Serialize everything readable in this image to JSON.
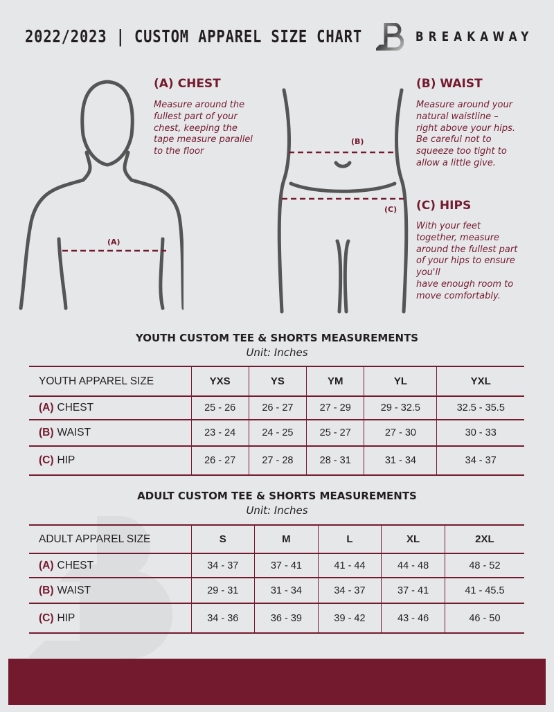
{
  "header": {
    "title": "2022/2023  |  CUSTOM APPAREL SIZE CHART",
    "brand": "BREAKAWAY",
    "watermark": "B"
  },
  "guide": {
    "chest": {
      "heading": "(A) CHEST",
      "text": "Measure around the\nfullest part of your\nchest, keeping the\ntape measure parallel\nto the floor",
      "marker": "(A)"
    },
    "waist": {
      "heading": "(B) WAIST",
      "text": "Measure around your\nnatural waistline –\nright above your hips.\nBe careful not to\nsqueeze too tight to\nallow a little give.",
      "marker": "(B)"
    },
    "hips": {
      "heading": "(C) HIPS",
      "text": "With your feet\ntogether, measure\naround the fullest part\nof your hips to ensure\nyou'll\nhave enough room to\nmove comfortably.",
      "marker": "(C)"
    }
  },
  "youth": {
    "title": "YOUTH CUSTOM TEE & SHORTS MEASUREMENTS",
    "unit": "Unit: Inches",
    "size_label": "YOUTH APPAREL SIZE",
    "sizes": [
      "YXS",
      "YS",
      "YM",
      "YL",
      "YXL"
    ],
    "rows": [
      {
        "letter": "(A)",
        "name": "CHEST",
        "values": [
          "25 - 26",
          "26 - 27",
          "27 - 29",
          "29 - 32.5",
          "32.5 - 35.5"
        ]
      },
      {
        "letter": "(B)",
        "name": "WAIST",
        "values": [
          "23 - 24",
          "24 - 25",
          "25 - 27",
          "27 - 30",
          "30 - 33"
        ]
      },
      {
        "letter": "(C)",
        "name": "HIP",
        "values": [
          "26 - 27",
          "27 - 28",
          "28 - 31",
          "31 - 34",
          "34 - 37"
        ]
      }
    ]
  },
  "adult": {
    "title": "ADULT CUSTOM TEE & SHORTS MEASUREMENTS",
    "unit": "Unit: Inches",
    "size_label": "ADULT APPAREL SIZE",
    "sizes": [
      "S",
      "M",
      "L",
      "XL",
      "2XL"
    ],
    "rows": [
      {
        "letter": "(A)",
        "name": "CHEST",
        "values": [
          "34 - 37",
          "37 - 41",
          "41 - 44",
          "44 - 48",
          "48 - 52"
        ]
      },
      {
        "letter": "(B)",
        "name": "WAIST",
        "values": [
          "29 - 31",
          "31 - 34",
          "34 - 37",
          "37 - 41",
          "41 - 45.5"
        ]
      },
      {
        "letter": "(C)",
        "name": "HIP",
        "values": [
          "34 - 36",
          "36 - 39",
          "39 - 42",
          "43 - 46",
          "46 - 50"
        ]
      }
    ]
  },
  "colors": {
    "accent": "#741a2e",
    "background": "#e6e7e9"
  }
}
